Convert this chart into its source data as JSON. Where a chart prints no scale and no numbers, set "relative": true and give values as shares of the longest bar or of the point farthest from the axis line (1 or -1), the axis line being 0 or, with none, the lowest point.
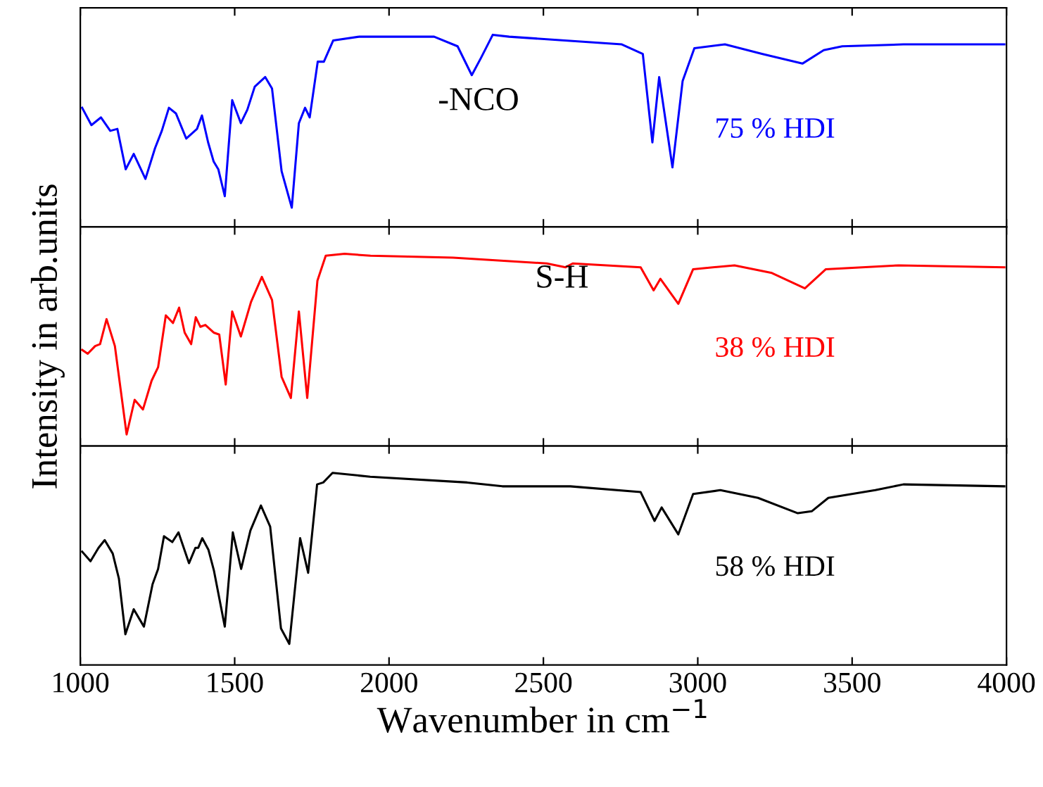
{
  "chart_data": [
    {
      "type": "line",
      "relative": true,
      "xlim": [
        1000,
        4000
      ],
      "xticks": [
        1000,
        1500,
        2000,
        2500,
        3000,
        3500,
        4000
      ],
      "tick_labels": false,
      "annotations": [
        "-NCO"
      ],
      "series": [
        {
          "name": "75 % HDI",
          "color": "#0000ff",
          "x": [
            1006,
            1036,
            1067,
            1097,
            1120,
            1147,
            1173,
            1211,
            1242,
            1264,
            1287,
            1310,
            1343,
            1378,
            1394,
            1414,
            1432,
            1447,
            1468,
            1492,
            1520,
            1541,
            1565,
            1599,
            1621,
            1652,
            1685,
            1708,
            1728,
            1743,
            1769,
            1789,
            1819,
            1903,
            2146,
            2222,
            2268,
            2298,
            2336,
            2389,
            2754,
            2822,
            2853,
            2875,
            2918,
            2951,
            2989,
            3088,
            3210,
            3339,
            3408,
            3468,
            3666,
            3993
          ],
          "values": [
            0.62,
            0.53,
            0.57,
            0.5,
            0.51,
            0.3,
            0.38,
            0.25,
            0.41,
            0.5,
            0.62,
            0.59,
            0.46,
            0.51,
            0.58,
            0.44,
            0.34,
            0.3,
            0.16,
            0.66,
            0.54,
            0.61,
            0.73,
            0.78,
            0.72,
            0.29,
            0.1,
            0.54,
            0.62,
            0.57,
            0.86,
            0.86,
            0.97,
            0.99,
            0.99,
            0.94,
            0.79,
            0.88,
            1.0,
            0.99,
            0.95,
            0.9,
            0.44,
            0.78,
            0.31,
            0.76,
            0.93,
            0.95,
            0.9,
            0.85,
            0.92,
            0.94,
            0.95,
            0.95
          ]
        }
      ]
    },
    {
      "type": "line",
      "relative": true,
      "xlim": [
        1000,
        4000
      ],
      "xticks": [
        1000,
        1500,
        2000,
        2500,
        3000,
        3500,
        4000
      ],
      "tick_labels": false,
      "ylabel": "Intensity in arb.units",
      "annotations": [
        "S-H"
      ],
      "series": [
        {
          "name": "38 % HDI",
          "color": "#ff0000",
          "x": [
            1006,
            1024,
            1048,
            1064,
            1085,
            1112,
            1131,
            1150,
            1176,
            1203,
            1231,
            1252,
            1277,
            1300,
            1320,
            1338,
            1359,
            1374,
            1389,
            1405,
            1432,
            1450,
            1471,
            1492,
            1520,
            1553,
            1588,
            1621,
            1652,
            1682,
            1708,
            1735,
            1768,
            1795,
            1856,
            1940,
            2207,
            2511,
            2572,
            2595,
            2815,
            2857,
            2879,
            2937,
            2985,
            3119,
            3240,
            3347,
            3415,
            3651,
            3993
          ],
          "values": [
            0.5,
            0.48,
            0.52,
            0.53,
            0.66,
            0.52,
            0.29,
            0.06,
            0.24,
            0.19,
            0.34,
            0.41,
            0.68,
            0.64,
            0.72,
            0.59,
            0.53,
            0.67,
            0.62,
            0.63,
            0.59,
            0.58,
            0.32,
            0.7,
            0.57,
            0.75,
            0.88,
            0.76,
            0.36,
            0.25,
            0.7,
            0.25,
            0.86,
            0.99,
            1.0,
            0.99,
            0.98,
            0.95,
            0.93,
            0.95,
            0.93,
            0.81,
            0.87,
            0.74,
            0.92,
            0.94,
            0.9,
            0.82,
            0.92,
            0.94,
            0.93
          ]
        }
      ]
    },
    {
      "type": "line",
      "relative": true,
      "xlim": [
        1000,
        4000
      ],
      "xticks": [
        1000,
        1500,
        2000,
        2500,
        3000,
        3500,
        4000
      ],
      "tick_labels": "x",
      "xlabel": "Wavenumber in cm$^{−1}$",
      "series": [
        {
          "name": "58 % HDI",
          "color": "#000000",
          "x": [
            1006,
            1033,
            1059,
            1079,
            1105,
            1125,
            1146,
            1173,
            1206,
            1234,
            1252,
            1271,
            1298,
            1318,
            1352,
            1373,
            1382,
            1395,
            1415,
            1433,
            1468,
            1494,
            1521,
            1551,
            1585,
            1615,
            1650,
            1677,
            1712,
            1738,
            1767,
            1787,
            1817,
            1939,
            2253,
            2367,
            2587,
            2815,
            2860,
            2883,
            2937,
            2985,
            3073,
            3195,
            3324,
            3369,
            3423,
            3575,
            3666,
            3993
          ],
          "values": [
            0.59,
            0.54,
            0.61,
            0.65,
            0.58,
            0.45,
            0.16,
            0.29,
            0.2,
            0.42,
            0.5,
            0.67,
            0.64,
            0.69,
            0.53,
            0.61,
            0.61,
            0.66,
            0.6,
            0.49,
            0.2,
            0.69,
            0.5,
            0.7,
            0.83,
            0.72,
            0.19,
            0.11,
            0.66,
            0.48,
            0.94,
            0.95,
            1.0,
            0.98,
            0.95,
            0.93,
            0.93,
            0.9,
            0.75,
            0.82,
            0.68,
            0.89,
            0.91,
            0.87,
            0.79,
            0.8,
            0.87,
            0.91,
            0.94,
            0.93
          ]
        }
      ]
    }
  ]
}
